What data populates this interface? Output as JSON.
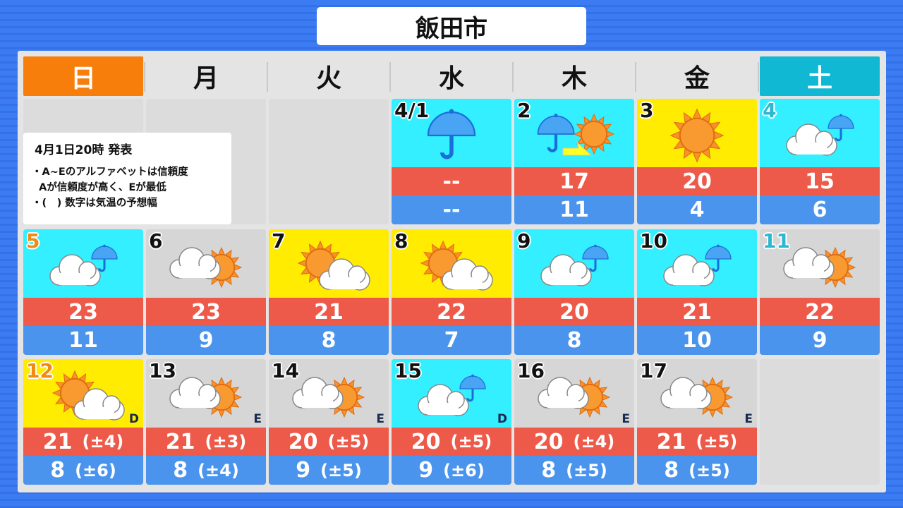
{
  "title": "飯田市",
  "weekdays": [
    "日",
    "月",
    "火",
    "水",
    "木",
    "金",
    "土"
  ],
  "note": {
    "issued": "4月1日20時 発表",
    "lines": [
      "・A~Eのアルファベットは信頼度",
      "  Aが信頼度が高く、Eが最低",
      "・(　) 数字は気温の予想幅"
    ]
  },
  "colors": {
    "rain_bg": "#33efff",
    "sunny_bg": "#ffec00",
    "cloudy_bg": "#d6d6d6",
    "high": "#ee5a4a",
    "low": "#4a94ee",
    "sunday": "#f77e0a",
    "saturday": "#10b8d4"
  },
  "weeks": [
    [
      null,
      null,
      null,
      {
        "date": "4/1",
        "weather": "rain",
        "high": "--",
        "low": "--"
      },
      {
        "date": "2",
        "weather": "rain-then-sun",
        "high": "17",
        "low": "11"
      },
      {
        "date": "3",
        "weather": "sunny",
        "high": "20",
        "low": "4"
      },
      {
        "date": "4",
        "weather": "cloud-rain",
        "high": "15",
        "low": "6"
      }
    ],
    [
      {
        "date": "5",
        "weather": "cloud-rain",
        "high": "23",
        "low": "11"
      },
      {
        "date": "6",
        "weather": "cloud-sun",
        "high": "23",
        "low": "9"
      },
      {
        "date": "7",
        "weather": "sun-cloud",
        "high": "21",
        "low": "8"
      },
      {
        "date": "8",
        "weather": "sun-cloud",
        "high": "22",
        "low": "7"
      },
      {
        "date": "9",
        "weather": "cloud-rain",
        "high": "20",
        "low": "8"
      },
      {
        "date": "10",
        "weather": "cloud-rain",
        "high": "21",
        "low": "10"
      },
      {
        "date": "11",
        "weather": "cloud-sun",
        "high": "22",
        "low": "9"
      }
    ],
    [
      {
        "date": "12",
        "weather": "sun-cloud",
        "high": "21",
        "high_range": "(±4)",
        "low": "8",
        "low_range": "(±6)",
        "reliability": "D"
      },
      {
        "date": "13",
        "weather": "cloud-sun",
        "high": "21",
        "high_range": "(±3)",
        "low": "8",
        "low_range": "(±4)",
        "reliability": "E"
      },
      {
        "date": "14",
        "weather": "cloud-sun",
        "high": "20",
        "high_range": "(±5)",
        "low": "9",
        "low_range": "(±5)",
        "reliability": "E"
      },
      {
        "date": "15",
        "weather": "cloud-rain",
        "high": "20",
        "high_range": "(±5)",
        "low": "9",
        "low_range": "(±6)",
        "reliability": "D"
      },
      {
        "date": "16",
        "weather": "cloud-sun",
        "high": "20",
        "high_range": "(±4)",
        "low": "8",
        "low_range": "(±5)",
        "reliability": "E"
      },
      {
        "date": "17",
        "weather": "cloud-sun",
        "high": "21",
        "high_range": "(±5)",
        "low": "8",
        "low_range": "(±5)",
        "reliability": "E"
      },
      null
    ]
  ]
}
